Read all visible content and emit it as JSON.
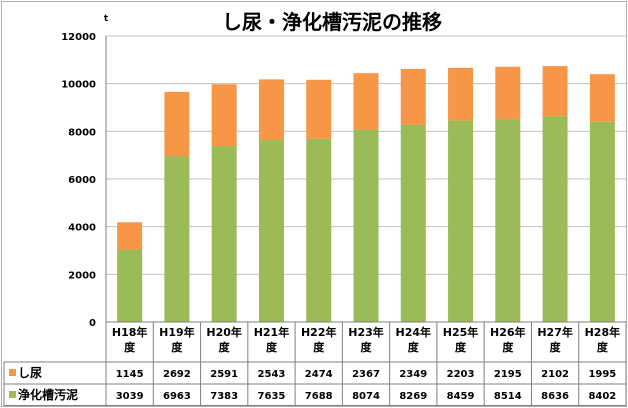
{
  "chart_data": {
    "type": "bar",
    "stacked": true,
    "title": "し尿・浄化槽汚泥の推移",
    "unit": "t",
    "ylim": [
      0,
      12000
    ],
    "yticks": [
      0,
      2000,
      4000,
      6000,
      8000,
      10000,
      12000
    ],
    "grid": true,
    "categories": [
      [
        "H18年",
        "度"
      ],
      [
        "H19年",
        "度"
      ],
      [
        "H20年",
        "度"
      ],
      [
        "H21年",
        "度"
      ],
      [
        "H22年",
        "度"
      ],
      [
        "H23年",
        "度"
      ],
      [
        "H24年",
        "度"
      ],
      [
        "H25年",
        "度"
      ],
      [
        "H26年",
        "度"
      ],
      [
        "H27年",
        "度"
      ],
      [
        "H28年",
        "度"
      ]
    ],
    "series": [
      {
        "name": "浄化槽汚泥",
        "color": "#9bbb59",
        "values": [
          3039,
          6963,
          7383,
          7635,
          7688,
          8074,
          8269,
          8459,
          8514,
          8636,
          8402
        ]
      },
      {
        "name": "し尿",
        "color": "#f79646",
        "values": [
          1145,
          2692,
          2591,
          2543,
          2474,
          2367,
          2349,
          2203,
          2195,
          2102,
          1995
        ]
      }
    ],
    "table_rows": [
      "し尿",
      "浄化槽汚泥"
    ]
  }
}
